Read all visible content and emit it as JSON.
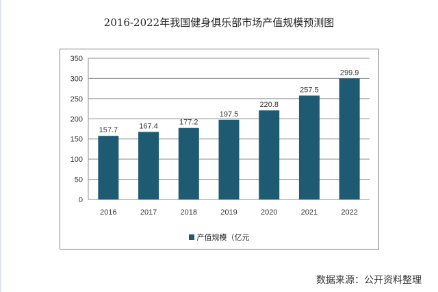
{
  "chart_data": {
    "type": "bar",
    "title": "2016-2022年我国健身俱乐部市场产值规模预测图",
    "categories": [
      "2016",
      "2017",
      "2018",
      "2019",
      "2020",
      "2021",
      "2022"
    ],
    "series": [
      {
        "name": "产值规模（亿元",
        "values": [
          157.7,
          167.4,
          177.2,
          197.5,
          220.8,
          257.5,
          299.9
        ]
      }
    ],
    "data_labels": [
      "157.7",
      "167.4",
      "177.2",
      "197.5",
      "220.8",
      "257.5",
      "299.9"
    ],
    "yticks": [
      "0",
      "50",
      "100",
      "150",
      "200",
      "250",
      "300",
      "350"
    ],
    "ylim": [
      0,
      350
    ],
    "grid": true,
    "legend_position": "bottom",
    "bar_color": "#1e5b73"
  },
  "source": "数据来源：公开资料整理"
}
